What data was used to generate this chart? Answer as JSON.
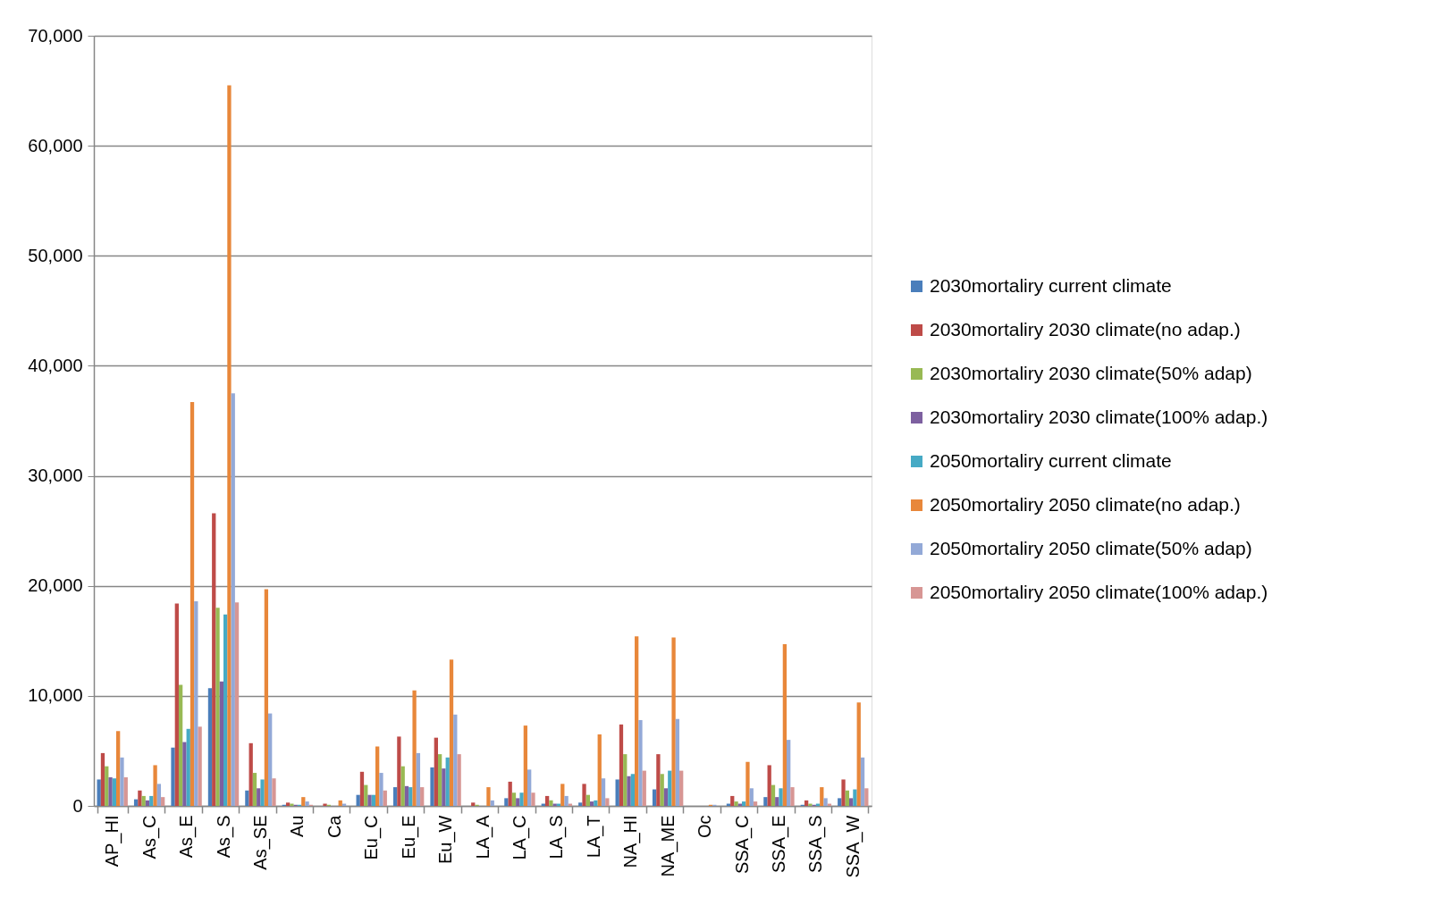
{
  "chart_data": {
    "type": "bar",
    "categories": [
      "AP_HI",
      "As_C",
      "As_E",
      "As_S",
      "As_SE",
      "Au",
      "Ca",
      "Eu_C",
      "Eu_E",
      "Eu_W",
      "LA_A",
      "LA_C",
      "LA_S",
      "LA_T",
      "NA_HI",
      "NA_ME",
      "Oc",
      "SSA_C",
      "SSA_E",
      "SSA_S",
      "SSA_W"
    ],
    "series": [
      {
        "name": "2030mortaliry current climate",
        "color": "#4a7ebb",
        "values": [
          2400,
          600,
          5300,
          10700,
          1400,
          100,
          null,
          1000,
          1700,
          3500,
          null,
          700,
          200,
          300,
          2400,
          1500,
          null,
          200,
          800,
          100,
          700
        ]
      },
      {
        "name": "2030mortaliry 2030 climate(no adap.)",
        "color": "#be4b48",
        "values": [
          4800,
          1400,
          18400,
          26600,
          5700,
          300,
          200,
          3100,
          6300,
          6200,
          300,
          2200,
          900,
          2000,
          7400,
          4700,
          null,
          900,
          3700,
          500,
          2400
        ]
      },
      {
        "name": "2030mortaliry 2030 climate(50% adap)",
        "color": "#98b954",
        "values": [
          3600,
          900,
          11000,
          18000,
          3000,
          200,
          100,
          1900,
          3600,
          4700,
          100,
          1200,
          500,
          1000,
          4700,
          2900,
          null,
          400,
          1900,
          200,
          1400
        ]
      },
      {
        "name": "2030mortaliry 2030 climate(100% adap.)",
        "color": "#7d60a0",
        "values": [
          2600,
          500,
          5800,
          11300,
          1600,
          100,
          null,
          1000,
          1800,
          3400,
          null,
          700,
          200,
          400,
          2700,
          1600,
          null,
          200,
          800,
          100,
          700
        ]
      },
      {
        "name": "2050mortaliry current climate",
        "color": "#46aac5",
        "values": [
          2500,
          900,
          7000,
          17400,
          2400,
          100,
          null,
          1000,
          1700,
          4400,
          null,
          1200,
          200,
          500,
          2900,
          3200,
          null,
          400,
          1600,
          200,
          1500
        ]
      },
      {
        "name": "2050mortaliry 2050 climate(no adap.)",
        "color": "#e8873a",
        "values": [
          6800,
          3700,
          36700,
          65500,
          19700,
          800,
          500,
          5400,
          10500,
          13300,
          1700,
          7300,
          2000,
          6500,
          15400,
          15300,
          100,
          4000,
          14700,
          1700,
          9400
        ]
      },
      {
        "name": "2050mortaliry 2050 climate(50% adap)",
        "color": "#93a9d7",
        "values": [
          4400,
          2000,
          18600,
          37500,
          8400,
          400,
          200,
          3000,
          4800,
          8300,
          500,
          3300,
          900,
          2500,
          7800,
          7900,
          100,
          1600,
          6000,
          700,
          4400
        ]
      },
      {
        "name": "2050mortaliry 2050 climate(100% adap.)",
        "color": "#d79694",
        "values": [
          2600,
          800,
          7200,
          18500,
          2500,
          100,
          null,
          1400,
          1700,
          4700,
          null,
          1200,
          200,
          700,
          3200,
          3200,
          null,
          400,
          1700,
          200,
          1600
        ]
      }
    ],
    "ylim": [
      0,
      70000
    ],
    "yticks": [
      0,
      {
        "value": 10000,
        "label": "10,000"
      },
      {
        "value": 20000,
        "label": "20,000"
      },
      {
        "value": 30000,
        "label": "30,000"
      },
      {
        "value": 40000,
        "label": "40,000"
      },
      {
        "value": 50000,
        "label": "50,000"
      },
      {
        "value": 60000,
        "label": "60,000"
      },
      {
        "value": 70000,
        "label": "70,000"
      }
    ],
    "grid": "y",
    "legend": "right"
  }
}
